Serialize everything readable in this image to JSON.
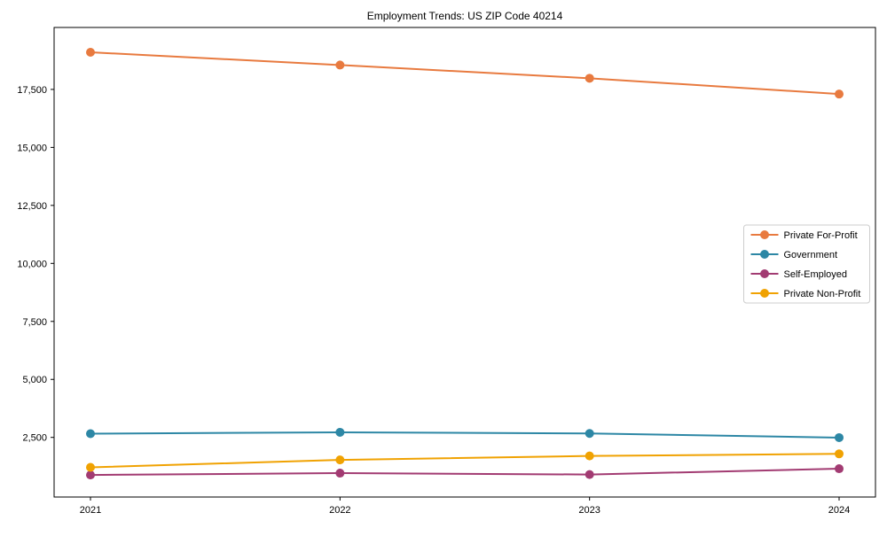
{
  "title": "Employment Trends: US ZIP Code 40214",
  "chart_data": {
    "type": "line",
    "title": "Employment Trends: US ZIP Code 40214",
    "xlabel": "",
    "ylabel": "",
    "x": [
      2021,
      2022,
      2023,
      2024
    ],
    "x_tick_labels": [
      "2021",
      "2022",
      "2023",
      "2024"
    ],
    "y_ticks": [
      2500,
      5000,
      7500,
      10000,
      12500,
      15000,
      17500
    ],
    "y_tick_labels": [
      "2,500",
      "5,000",
      "7,500",
      "10,000",
      "12,500",
      "15,000",
      "17,500"
    ],
    "ylim": [
      -70,
      20170
    ],
    "grid": false,
    "legend_position": "right",
    "series": [
      {
        "name": "Private For-Profit",
        "color": "#e87a3f",
        "values": [
          19100,
          18550,
          17980,
          17300
        ]
      },
      {
        "name": "Government",
        "color": "#2d87a5",
        "values": [
          2660,
          2720,
          2670,
          2490
        ]
      },
      {
        "name": "Self-Employed",
        "color": "#a23b72",
        "values": [
          880,
          960,
          900,
          1150
        ]
      },
      {
        "name": "Private Non-Profit",
        "color": "#f0a202",
        "values": [
          1210,
          1530,
          1700,
          1790
        ]
      }
    ]
  }
}
